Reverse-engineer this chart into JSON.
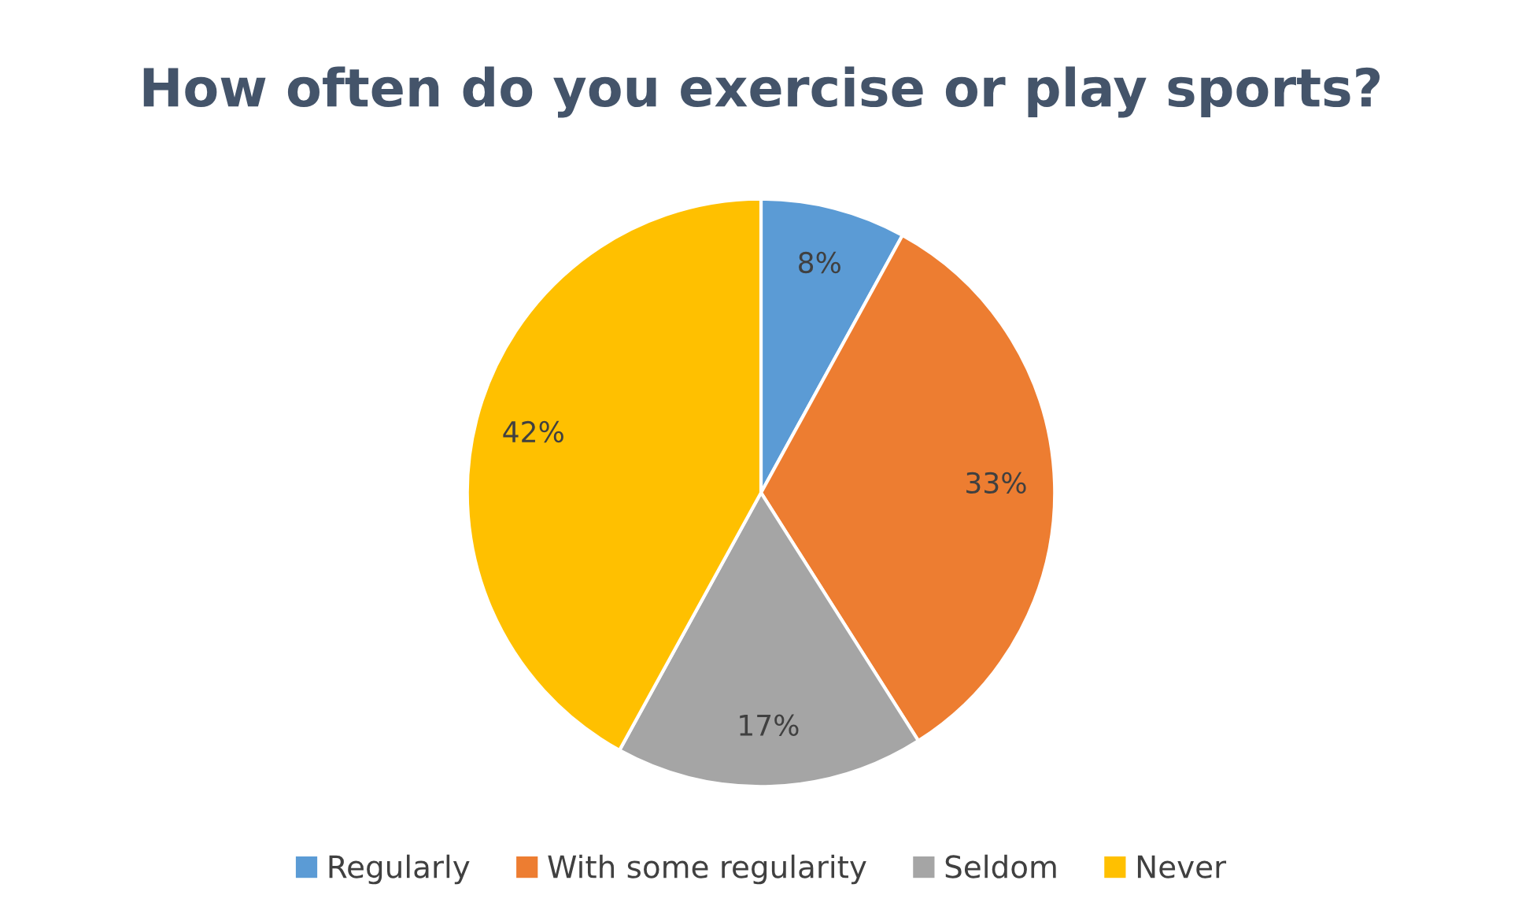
{
  "chart_data": {
    "type": "pie",
    "title": "How often do you exercise or play sports?",
    "categories": [
      "Regularly",
      "With some regularity",
      "Seldom",
      "Never"
    ],
    "values": [
      8,
      33,
      17,
      42
    ],
    "colors": [
      "#5b9bd5",
      "#ed7d31",
      "#a5a5a5",
      "#ffc000"
    ],
    "value_labels": [
      "8%",
      "33%",
      "17%",
      "42%"
    ],
    "legend": "bottom"
  }
}
